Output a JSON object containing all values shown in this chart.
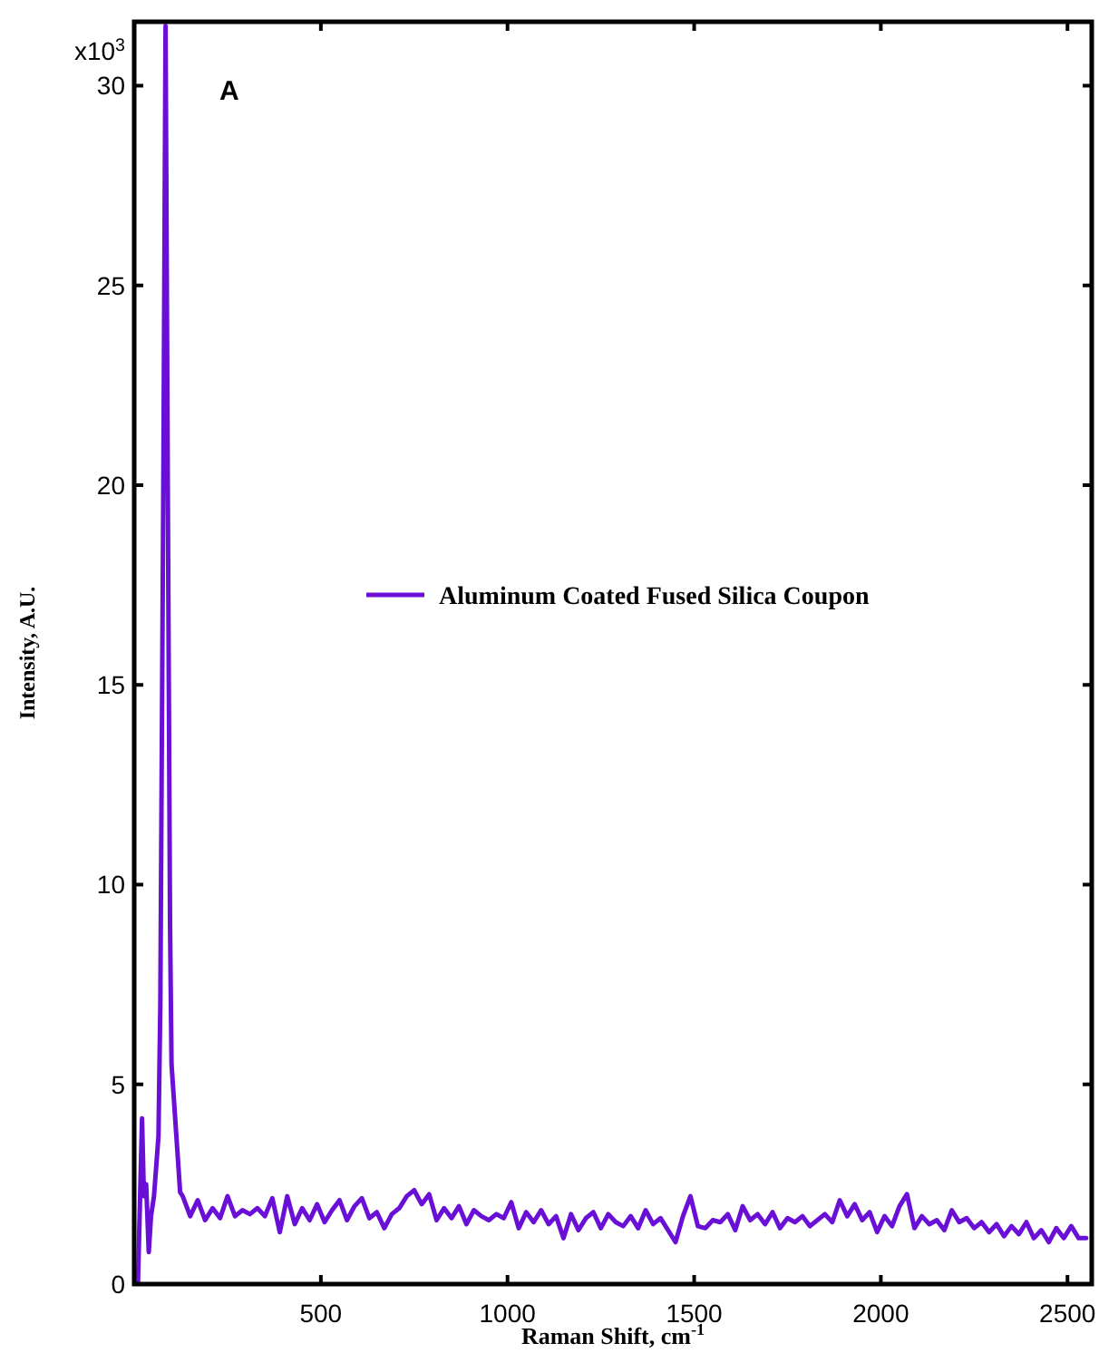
{
  "chart_data": {
    "type": "line",
    "xlabel": "Raman Shift, cm$^{-1}$",
    "ylabel": "Intensity, A.U.",
    "annotations": [
      "A",
      "x10$^{3}$"
    ],
    "legend": "right",
    "grid": false,
    "marker": "none",
    "line_style": "solid",
    "xlim": [
      0,
      2565
    ],
    "xticks": [
      500,
      1000,
      1500,
      2000,
      2500
    ],
    "ylim": [
      0,
      31.6
    ],
    "yticks": [
      0,
      5,
      10,
      15,
      20,
      25,
      30
    ],
    "series": [
      {
        "name": "Aluminum Coated Fused Silica Coupon",
        "color": "#6a0fd6",
        "x": [
          10,
          21,
          26,
          32,
          39,
          45,
          53,
          65,
          70,
          78,
          84,
          90,
          96,
          100,
          113,
          123,
          130,
          150,
          170,
          190,
          210,
          230,
          250,
          270,
          290,
          310,
          330,
          350,
          370,
          390,
          410,
          430,
          450,
          470,
          490,
          510,
          530,
          550,
          570,
          590,
          610,
          630,
          650,
          670,
          690,
          710,
          730,
          750,
          770,
          790,
          810,
          830,
          850,
          870,
          890,
          910,
          930,
          950,
          970,
          990,
          1010,
          1030,
          1050,
          1070,
          1090,
          1110,
          1130,
          1150,
          1170,
          1190,
          1210,
          1230,
          1250,
          1270,
          1290,
          1310,
          1330,
          1350,
          1370,
          1390,
          1410,
          1430,
          1450,
          1470,
          1490,
          1510,
          1530,
          1550,
          1570,
          1590,
          1610,
          1630,
          1650,
          1670,
          1690,
          1710,
          1730,
          1750,
          1770,
          1790,
          1810,
          1830,
          1850,
          1870,
          1890,
          1910,
          1930,
          1950,
          1970,
          1990,
          2010,
          2030,
          2050,
          2070,
          2090,
          2110,
          2130,
          2150,
          2170,
          2190,
          2210,
          2230,
          2250,
          2270,
          2290,
          2310,
          2330,
          2350,
          2370,
          2390,
          2410,
          2430,
          2450,
          2470,
          2490,
          2510,
          2530,
          2550
        ],
        "values": [
          0,
          4.15,
          2.2,
          2.5,
          0.8,
          1.7,
          2.2,
          3.7,
          7,
          20,
          31.5,
          20,
          9,
          5.5,
          3.7,
          2.3,
          2.2,
          1.7,
          2.1,
          1.6,
          1.9,
          1.65,
          2.2,
          1.7,
          1.85,
          1.75,
          1.9,
          1.7,
          2.15,
          1.3,
          2.2,
          1.5,
          1.9,
          1.6,
          2,
          1.55,
          1.85,
          2.1,
          1.6,
          1.95,
          2.15,
          1.65,
          1.8,
          1.4,
          1.75,
          1.9,
          2.2,
          2.35,
          2,
          2.25,
          1.6,
          1.9,
          1.65,
          1.95,
          1.5,
          1.85,
          1.7,
          1.6,
          1.75,
          1.65,
          2.05,
          1.4,
          1.8,
          1.55,
          1.85,
          1.5,
          1.7,
          1.15,
          1.75,
          1.35,
          1.65,
          1.8,
          1.4,
          1.75,
          1.55,
          1.45,
          1.7,
          1.4,
          1.85,
          1.5,
          1.65,
          1.35,
          1.05,
          1.7,
          2.2,
          1.45,
          1.4,
          1.6,
          1.55,
          1.75,
          1.35,
          1.95,
          1.6,
          1.75,
          1.5,
          1.8,
          1.4,
          1.65,
          1.55,
          1.7,
          1.45,
          1.6,
          1.75,
          1.55,
          2.1,
          1.7,
          2,
          1.6,
          1.8,
          1.3,
          1.7,
          1.45,
          1.95,
          2.25,
          1.4,
          1.7,
          1.5,
          1.6,
          1.35,
          1.85,
          1.55,
          1.65,
          1.4,
          1.55,
          1.3,
          1.5,
          1.2,
          1.45,
          1.25,
          1.55,
          1.15,
          1.35,
          1.05,
          1.4,
          1.15,
          1.45,
          1.15,
          1.15
        ]
      }
    ]
  }
}
